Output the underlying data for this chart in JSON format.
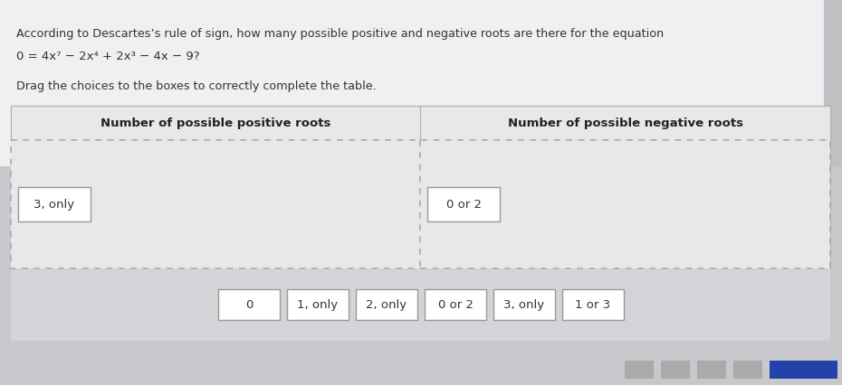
{
  "title_line1": "According to Descartes’s rule of sign, how many possible positive and negative roots are there for the equation",
  "title_line2_plain": "0 = 4x⁷ − 2x⁴ + 2x³ − 4x − 9?",
  "subtitle": "Drag the choices to the boxes to correctly complete the table.",
  "col1_header": "Number of possible positive roots",
  "col2_header": "Number of possible negative roots",
  "answer_positive": "3, only",
  "answer_negative": "0 or 2",
  "choices": [
    "0",
    "1, only",
    "2, only",
    "0 or 2",
    "3, only",
    "1 or 3"
  ],
  "page_bg": "#c8c8cc",
  "top_area_bg": "#f0f0f2",
  "table_area_bg": "#e8e8ea",
  "choices_area_bg": "#d4d4d8",
  "white": "#ffffff",
  "text_color": "#333333",
  "header_text_color": "#222222",
  "box_border": "#aaaaaa",
  "divider_color": "#999999",
  "scroll_right_bg": "#c0c0c4",
  "blue_bar": "#2244aa",
  "nav_bg": "#aaaaaa"
}
